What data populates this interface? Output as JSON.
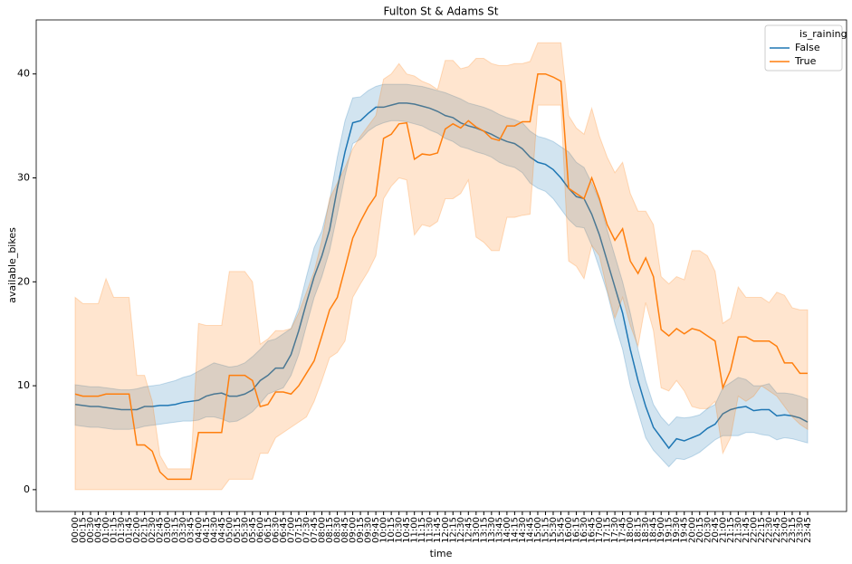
{
  "chart_data": {
    "type": "line",
    "title": "Fulton St & Adams St",
    "x_label": "time",
    "y_label": "available_bikes",
    "categories": [
      "00:00",
      "00:15",
      "00:30",
      "00:45",
      "01:00",
      "01:15",
      "01:30",
      "01:45",
      "02:00",
      "02:15",
      "02:30",
      "02:45",
      "03:00",
      "03:15",
      "03:30",
      "03:45",
      "04:00",
      "04:15",
      "04:30",
      "04:45",
      "05:00",
      "05:15",
      "05:30",
      "05:45",
      "06:00",
      "06:15",
      "06:30",
      "06:45",
      "07:00",
      "07:15",
      "07:30",
      "07:45",
      "08:00",
      "08:15",
      "08:30",
      "08:45",
      "09:00",
      "09:15",
      "09:30",
      "09:45",
      "10:00",
      "10:15",
      "10:30",
      "10:45",
      "11:00",
      "11:15",
      "11:30",
      "11:45",
      "12:00",
      "12:15",
      "12:30",
      "12:45",
      "13:00",
      "13:15",
      "13:30",
      "13:45",
      "14:00",
      "14:15",
      "14:30",
      "14:45",
      "15:00",
      "15:15",
      "15:30",
      "15:45",
      "16:00",
      "16:15",
      "16:30",
      "16:45",
      "17:00",
      "17:15",
      "17:30",
      "17:45",
      "18:00",
      "18:15",
      "18:30",
      "18:45",
      "19:00",
      "19:15",
      "19:30",
      "19:45",
      "20:00",
      "20:15",
      "20:30",
      "20:45",
      "21:00",
      "21:15",
      "21:30",
      "21:45",
      "22:00",
      "22:15",
      "22:30",
      "22:45",
      "23:00",
      "23:15",
      "23:30",
      "23:45"
    ],
    "legend_title": "is_raining",
    "legend": "upper right",
    "series": [
      {
        "name": "False",
        "color": "#1f77b4",
        "values": [
          8.2,
          8.1,
          8.0,
          8.0,
          7.9,
          7.8,
          7.7,
          7.7,
          7.7,
          8.0,
          8.0,
          8.1,
          8.1,
          8.2,
          8.4,
          8.5,
          8.6,
          9.0,
          9.2,
          9.3,
          9.0,
          9.0,
          9.2,
          9.6,
          10.5,
          11.0,
          11.7,
          11.7,
          13.0,
          15.3,
          18.0,
          20.5,
          22.5,
          25.0,
          29.0,
          32.5,
          35.3,
          35.5,
          36.2,
          36.8,
          36.8,
          37.0,
          37.2,
          37.2,
          37.1,
          36.9,
          36.7,
          36.4,
          36.0,
          35.8,
          35.3,
          35.0,
          34.8,
          34.5,
          34.2,
          33.8,
          33.5,
          33.3,
          32.8,
          32.0,
          31.5,
          31.3,
          30.8,
          30.0,
          29.0,
          28.2,
          28.0,
          26.5,
          24.5,
          22.0,
          19.5,
          17.0,
          13.5,
          10.5,
          8.0,
          6.0,
          5.0,
          4.0,
          4.9,
          4.7,
          5.0,
          5.3,
          5.9,
          6.3,
          7.3,
          7.7,
          7.9,
          8.0,
          7.6,
          7.7,
          7.7,
          7.1,
          7.2,
          7.1,
          6.9,
          6.5
        ],
        "lower": [
          6.2,
          6.1,
          6.0,
          6.0,
          5.9,
          5.8,
          5.8,
          5.8,
          5.9,
          6.1,
          6.2,
          6.3,
          6.4,
          6.5,
          6.6,
          6.6,
          6.7,
          7.0,
          7.0,
          6.8,
          6.5,
          6.6,
          7.0,
          7.5,
          8.3,
          9.2,
          9.5,
          9.8,
          11.0,
          13.0,
          15.8,
          18.5,
          20.5,
          23.0,
          26.5,
          30.2,
          33.3,
          33.7,
          34.5,
          35.0,
          35.3,
          35.5,
          35.5,
          35.4,
          35.2,
          35.0,
          34.6,
          34.3,
          33.8,
          33.5,
          33.0,
          32.8,
          32.5,
          32.3,
          32.0,
          31.5,
          31.2,
          31.0,
          30.5,
          29.5,
          29.0,
          28.7,
          28.0,
          27.0,
          26.0,
          25.3,
          25.2,
          23.5,
          21.3,
          19.0,
          16.0,
          13.5,
          10.0,
          7.5,
          5.0,
          3.8,
          3.0,
          2.2,
          3.0,
          2.9,
          3.2,
          3.6,
          4.2,
          4.8,
          5.2,
          5.2,
          5.2,
          5.5,
          5.5,
          5.3,
          5.2,
          4.8,
          5.0,
          4.9,
          4.7,
          4.5
        ],
        "upper": [
          10.1,
          10.0,
          9.9,
          9.9,
          9.8,
          9.7,
          9.6,
          9.6,
          9.7,
          9.9,
          10.0,
          10.1,
          10.3,
          10.5,
          10.8,
          11.0,
          11.4,
          11.8,
          12.2,
          12.0,
          11.8,
          11.9,
          12.2,
          12.8,
          13.5,
          14.3,
          14.5,
          15.0,
          15.5,
          17.5,
          20.5,
          23.3,
          24.9,
          27.8,
          32.0,
          35.5,
          37.7,
          37.8,
          38.4,
          38.8,
          39.0,
          39.0,
          39.0,
          39.0,
          38.9,
          38.8,
          38.6,
          38.4,
          38.2,
          37.9,
          37.6,
          37.2,
          37.0,
          36.8,
          36.5,
          36.1,
          35.8,
          35.6,
          35.3,
          34.5,
          34.0,
          33.8,
          33.5,
          33.0,
          32.5,
          31.5,
          31.0,
          29.5,
          27.8,
          25.0,
          22.5,
          20.0,
          17.0,
          13.5,
          10.5,
          8.2,
          7.0,
          6.2,
          7.0,
          6.9,
          7.0,
          7.2,
          7.8,
          8.2,
          9.8,
          10.3,
          10.8,
          10.6,
          10.0,
          10.0,
          10.2,
          9.3,
          9.3,
          9.2,
          9.0,
          8.7
        ]
      },
      {
        "name": "True",
        "color": "#ff7f0e",
        "values": [
          9.2,
          9.0,
          9.0,
          9.0,
          9.2,
          9.2,
          9.2,
          9.2,
          4.3,
          4.3,
          3.7,
          1.7,
          1.0,
          1.0,
          1.0,
          1.0,
          5.5,
          5.5,
          5.5,
          5.5,
          11.0,
          11.0,
          11.0,
          10.5,
          8.0,
          8.2,
          9.4,
          9.4,
          9.2,
          10.0,
          11.2,
          12.4,
          14.8,
          17.3,
          18.5,
          21.3,
          24.2,
          25.8,
          27.2,
          28.3,
          33.8,
          34.2,
          35.2,
          35.3,
          31.8,
          32.3,
          32.2,
          32.4,
          34.7,
          35.2,
          34.8,
          35.5,
          34.9,
          34.5,
          33.8,
          33.6,
          35.0,
          35.0,
          35.4,
          35.4,
          40.0,
          40.0,
          39.7,
          39.3,
          29.0,
          28.5,
          28.0,
          30.0,
          28.0,
          25.5,
          24.0,
          25.1,
          22.0,
          20.8,
          22.3,
          20.5,
          15.4,
          14.8,
          15.5,
          15.0,
          15.5,
          15.3,
          14.8,
          14.3,
          9.8,
          11.5,
          14.7,
          14.7,
          14.3,
          14.3,
          14.3,
          13.8,
          12.2,
          12.2,
          11.2,
          11.2
        ],
        "lower": [
          0,
          0,
          0,
          0,
          0,
          0,
          0,
          0,
          0,
          0,
          0,
          0,
          0,
          0,
          0,
          0,
          0,
          0,
          0,
          0,
          1,
          1,
          1,
          1,
          3.5,
          3.5,
          5,
          5.5,
          6,
          6.5,
          7,
          8.5,
          10.5,
          12.7,
          13.2,
          14.3,
          18.5,
          19.8,
          21,
          22.5,
          28,
          29.2,
          30,
          29.8,
          24.5,
          25.5,
          25.3,
          25.8,
          28,
          28,
          28.5,
          29.8,
          24.3,
          23.8,
          23,
          23,
          26.2,
          26.2,
          26.4,
          26.5,
          37,
          37,
          37,
          37,
          22,
          21.5,
          20.3,
          23.5,
          22.5,
          19.2,
          16.5,
          18.5,
          15.8,
          13.8,
          18,
          15.3,
          9.8,
          9.5,
          10.5,
          9.5,
          8,
          7.8,
          7.8,
          8.5,
          3.5,
          5,
          9,
          8.5,
          9,
          10,
          9.5,
          9,
          8,
          7,
          6.3,
          5.8
        ],
        "upper": [
          18.5,
          17.9,
          17.9,
          17.9,
          20.3,
          18.5,
          18.5,
          18.5,
          11,
          11,
          8.5,
          3.3,
          2,
          2,
          2,
          2,
          16,
          15.8,
          15.8,
          15.8,
          21,
          21,
          21,
          20,
          14,
          14.5,
          15.3,
          15.3,
          15.5,
          17,
          19,
          21,
          24,
          28,
          29.5,
          31,
          32.8,
          34,
          35,
          36,
          39.5,
          40,
          41,
          40,
          39.8,
          39.3,
          39,
          38.5,
          41.3,
          41.3,
          40.5,
          40.7,
          41.5,
          41.5,
          41,
          40.8,
          40.8,
          41,
          41,
          41.2,
          43,
          43,
          43,
          43,
          36,
          34.8,
          34.2,
          36.7,
          34,
          32,
          30.5,
          31.5,
          28.5,
          26.8,
          26.8,
          25.5,
          20.5,
          19.8,
          20.5,
          20.2,
          23,
          23,
          22.5,
          21,
          16,
          16.5,
          19.5,
          18.5,
          18.5,
          18.5,
          18,
          19,
          18.7,
          17.5,
          17.3,
          17.3
        ]
      }
    ],
    "ylim": [
      -2.1,
      45.2
    ],
    "yticks": [
      0,
      10,
      20,
      30,
      40
    ]
  }
}
